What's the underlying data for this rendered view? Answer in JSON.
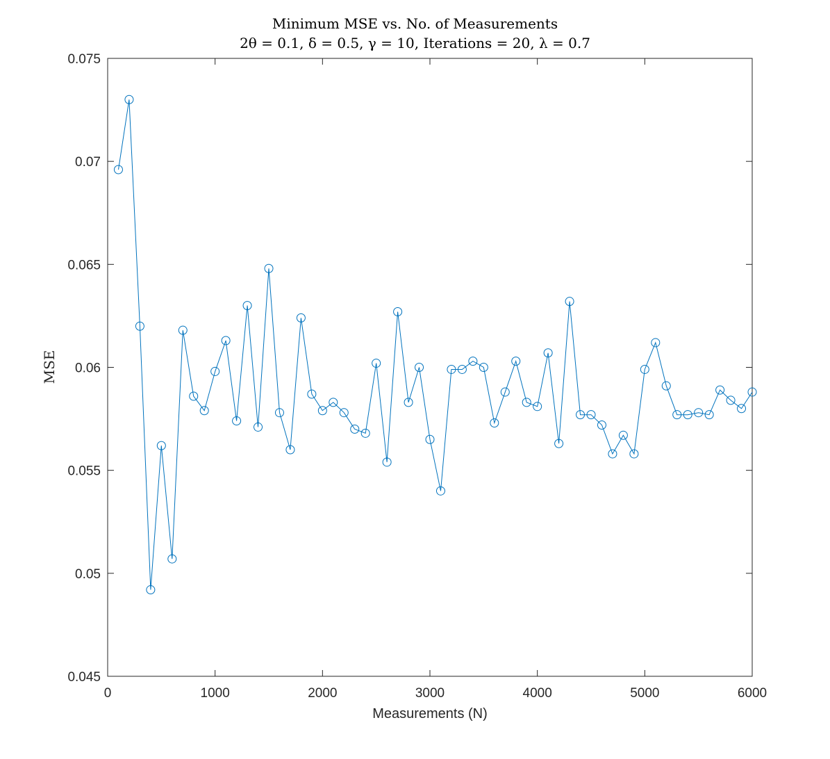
{
  "chart_data": {
    "type": "line",
    "title": "Minimum MSE vs. No. of Measurements",
    "subtitle": "2θ = 0.1, δ = 0.5, γ = 10, Iterations = 20, λ = 0.7",
    "xlabel": "Measurements (N)",
    "ylabel": "MSE",
    "xlim": [
      0,
      6000
    ],
    "ylim": [
      0.045,
      0.075
    ],
    "xticks": [
      0,
      1000,
      2000,
      3000,
      4000,
      5000,
      6000
    ],
    "xtick_labels": [
      "0",
      "1000",
      "2000",
      "3000",
      "4000",
      "5000",
      "6000"
    ],
    "yticks": [
      0.045,
      0.05,
      0.055,
      0.06,
      0.065,
      0.07,
      0.075
    ],
    "ytick_labels": [
      "0.045",
      "0.05",
      "0.055",
      "0.06",
      "0.065",
      "0.07",
      "0.075"
    ],
    "grid": false,
    "marker": "circle",
    "line_color": "#0072BD",
    "series": [
      {
        "x": [
          100,
          200,
          300,
          400,
          500,
          600,
          700,
          800,
          900,
          1000,
          1100,
          1200,
          1300,
          1400,
          1500,
          1600,
          1700,
          1800,
          1900,
          2000,
          2100,
          2200,
          2300,
          2400,
          2500,
          2600,
          2700,
          2800,
          2900,
          3000,
          3100,
          3200,
          3300,
          3400,
          3500,
          3600,
          3700,
          3800,
          3900,
          4000,
          4100,
          4200,
          4300,
          4400,
          4500,
          4600,
          4700,
          4800,
          4900,
          5000,
          5100,
          5200,
          5300,
          5400,
          5500,
          5600,
          5700,
          5800,
          5900,
          6000
        ],
        "values": [
          0.0696,
          0.073,
          0.062,
          0.0492,
          0.0562,
          0.0507,
          0.0618,
          0.0586,
          0.0579,
          0.0598,
          0.0613,
          0.0574,
          0.063,
          0.0571,
          0.0648,
          0.0578,
          0.056,
          0.0624,
          0.0587,
          0.0579,
          0.0583,
          0.0578,
          0.057,
          0.0568,
          0.0602,
          0.0554,
          0.0627,
          0.0583,
          0.06,
          0.0565,
          0.054,
          0.0599,
          0.0599,
          0.0603,
          0.06,
          0.0573,
          0.0588,
          0.0603,
          0.0583,
          0.0581,
          0.0607,
          0.0563,
          0.0632,
          0.0577,
          0.0577,
          0.0572,
          0.0558,
          0.0567,
          0.0558,
          0.0599,
          0.0612,
          0.0591,
          0.0577,
          0.0577,
          0.0578,
          0.0577,
          0.0589,
          0.0584,
          0.058,
          0.0588
        ]
      }
    ]
  }
}
